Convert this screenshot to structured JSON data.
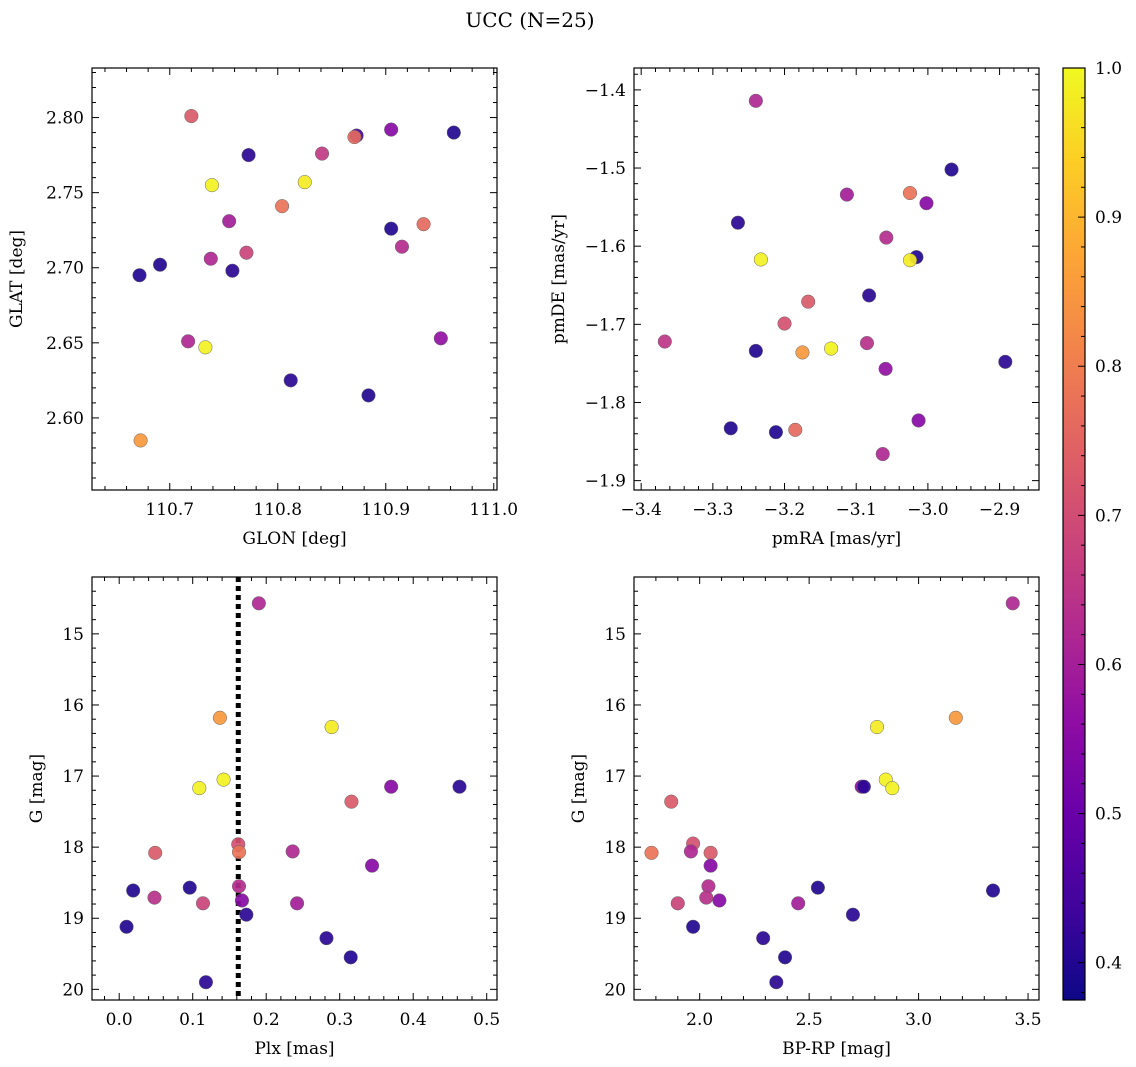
{
  "title": "UCC (N=25)",
  "colorbar": {
    "range": [
      0.375,
      1.0
    ],
    "ticks": [
      0.4,
      0.5,
      0.6,
      0.7,
      0.8,
      0.9,
      1.0
    ],
    "tick_labels": [
      "0.4",
      "0.5",
      "0.6",
      "0.7",
      "0.8",
      "0.9",
      "1.0"
    ],
    "colormap": "plasma"
  },
  "chart_data": [
    {
      "type": "scatter",
      "id": "glon_glat",
      "xlabel": "GLON [deg]",
      "ylabel": "GLAT [deg]",
      "xlim": [
        110.628,
        111.003
      ],
      "ylim": [
        2.552,
        2.833
      ],
      "inverted_y": false,
      "xticks": [
        110.7,
        110.8,
        110.9,
        111.0
      ],
      "xtick_labels": [
        "110.7",
        "110.8",
        "110.9",
        "111.0"
      ],
      "yticks": [
        2.6,
        2.65,
        2.7,
        2.75,
        2.8
      ],
      "ytick_labels": [
        "2.60",
        "2.65",
        "2.70",
        "2.75",
        "2.80"
      ],
      "points": [
        {
          "x": 110.72,
          "y": 2.801,
          "c": 0.73
        },
        {
          "x": 110.873,
          "y": 2.788,
          "c": 0.44
        },
        {
          "x": 110.871,
          "y": 2.787,
          "c": 0.76
        },
        {
          "x": 110.905,
          "y": 2.792,
          "c": 0.55
        },
        {
          "x": 110.963,
          "y": 2.79,
          "c": 0.4
        },
        {
          "x": 110.841,
          "y": 2.776,
          "c": 0.66
        },
        {
          "x": 110.773,
          "y": 2.775,
          "c": 0.41
        },
        {
          "x": 110.825,
          "y": 2.757,
          "c": 0.98
        },
        {
          "x": 110.739,
          "y": 2.755,
          "c": 0.99
        },
        {
          "x": 110.804,
          "y": 2.741,
          "c": 0.78
        },
        {
          "x": 110.755,
          "y": 2.731,
          "c": 0.6
        },
        {
          "x": 110.935,
          "y": 2.729,
          "c": 0.76
        },
        {
          "x": 110.905,
          "y": 2.726,
          "c": 0.4
        },
        {
          "x": 110.915,
          "y": 2.714,
          "c": 0.63
        },
        {
          "x": 110.771,
          "y": 2.71,
          "c": 0.68
        },
        {
          "x": 110.738,
          "y": 2.706,
          "c": 0.62
        },
        {
          "x": 110.691,
          "y": 2.702,
          "c": 0.4
        },
        {
          "x": 110.758,
          "y": 2.698,
          "c": 0.41
        },
        {
          "x": 110.672,
          "y": 2.695,
          "c": 0.4
        },
        {
          "x": 110.717,
          "y": 2.651,
          "c": 0.62
        },
        {
          "x": 110.733,
          "y": 2.647,
          "c": 0.99
        },
        {
          "x": 110.951,
          "y": 2.653,
          "c": 0.57
        },
        {
          "x": 110.812,
          "y": 2.625,
          "c": 0.41
        },
        {
          "x": 110.884,
          "y": 2.615,
          "c": 0.4
        },
        {
          "x": 110.673,
          "y": 2.585,
          "c": 0.85
        }
      ]
    },
    {
      "type": "scatter",
      "id": "pmra_pmde",
      "xlabel": "pmRA [mas/yr]",
      "ylabel": "pmDE [mas/yr]",
      "xlim": [
        -3.41,
        -2.845
      ],
      "ylim": [
        -1.912,
        -1.372
      ],
      "inverted_y": false,
      "xticks": [
        -3.4,
        -3.3,
        -3.2,
        -3.1,
        -3.0,
        -2.9
      ],
      "xtick_labels": [
        "−3.4",
        "−3.3",
        "−3.2",
        "−3.1",
        "−3.0",
        "−2.9"
      ],
      "yticks": [
        -1.9,
        -1.8,
        -1.7,
        -1.6,
        -1.5,
        -1.4
      ],
      "ytick_labels": [
        "−1.9",
        "−1.8",
        "−1.7",
        "−1.6",
        "−1.5",
        "−1.4"
      ],
      "points": [
        {
          "x": -3.24,
          "y": -1.414,
          "c": 0.62
        },
        {
          "x": -2.967,
          "y": -1.502,
          "c": 0.4
        },
        {
          "x": -3.113,
          "y": -1.534,
          "c": 0.6
        },
        {
          "x": -3.025,
          "y": -1.532,
          "c": 0.78
        },
        {
          "x": -3.002,
          "y": -1.545,
          "c": 0.55
        },
        {
          "x": -3.265,
          "y": -1.57,
          "c": 0.41
        },
        {
          "x": -3.058,
          "y": -1.589,
          "c": 0.63
        },
        {
          "x": -3.016,
          "y": -1.614,
          "c": 0.4
        },
        {
          "x": -3.025,
          "y": -1.618,
          "c": 0.98
        },
        {
          "x": -3.233,
          "y": -1.617,
          "c": 0.99
        },
        {
          "x": -3.082,
          "y": -1.663,
          "c": 0.41
        },
        {
          "x": -3.167,
          "y": -1.671,
          "c": 0.73
        },
        {
          "x": -3.2,
          "y": -1.699,
          "c": 0.71
        },
        {
          "x": -3.367,
          "y": -1.722,
          "c": 0.65
        },
        {
          "x": -3.085,
          "y": -1.724,
          "c": 0.64
        },
        {
          "x": -3.135,
          "y": -1.731,
          "c": 0.99
        },
        {
          "x": -3.175,
          "y": -1.736,
          "c": 0.85
        },
        {
          "x": -3.24,
          "y": -1.734,
          "c": 0.4
        },
        {
          "x": -2.892,
          "y": -1.748,
          "c": 0.41
        },
        {
          "x": -3.059,
          "y": -1.757,
          "c": 0.57
        },
        {
          "x": -3.013,
          "y": -1.823,
          "c": 0.55
        },
        {
          "x": -3.275,
          "y": -1.833,
          "c": 0.4
        },
        {
          "x": -3.212,
          "y": -1.838,
          "c": 0.4
        },
        {
          "x": -3.185,
          "y": -1.835,
          "c": 0.76
        },
        {
          "x": -3.063,
          "y": -1.866,
          "c": 0.62
        }
      ]
    },
    {
      "type": "scatter",
      "id": "plx_g",
      "xlabel": "Plx [mas]",
      "ylabel": "G [mag]",
      "xlim": [
        -0.037,
        0.514
      ],
      "ylim": [
        14.2,
        20.15
      ],
      "inverted_y": true,
      "vline": {
        "x": 0.162,
        "style": "dotted",
        "color": "#000000"
      },
      "xticks": [
        0.0,
        0.1,
        0.2,
        0.3,
        0.4,
        0.5
      ],
      "xtick_labels": [
        "0.0",
        "0.1",
        "0.2",
        "0.3",
        "0.4",
        "0.5"
      ],
      "yticks": [
        15,
        16,
        17,
        18,
        19,
        20
      ],
      "ytick_labels": [
        "15",
        "16",
        "17",
        "18",
        "19",
        "20"
      ],
      "points": [
        {
          "x": 0.19,
          "y": 14.57,
          "c": 0.62
        },
        {
          "x": 0.137,
          "y": 16.18,
          "c": 0.85
        },
        {
          "x": 0.289,
          "y": 16.31,
          "c": 0.98
        },
        {
          "x": 0.142,
          "y": 17.05,
          "c": 0.99
        },
        {
          "x": 0.109,
          "y": 17.17,
          "c": 0.99
        },
        {
          "x": 0.37,
          "y": 17.15,
          "c": 0.55
        },
        {
          "x": 0.463,
          "y": 17.15,
          "c": 0.41
        },
        {
          "x": 0.316,
          "y": 17.36,
          "c": 0.73
        },
        {
          "x": 0.162,
          "y": 17.96,
          "c": 0.71
        },
        {
          "x": 0.163,
          "y": 18.07,
          "c": 0.78
        },
        {
          "x": 0.049,
          "y": 18.08,
          "c": 0.73
        },
        {
          "x": 0.236,
          "y": 18.06,
          "c": 0.62
        },
        {
          "x": 0.344,
          "y": 18.26,
          "c": 0.55
        },
        {
          "x": 0.163,
          "y": 18.55,
          "c": 0.63
        },
        {
          "x": 0.096,
          "y": 18.57,
          "c": 0.4
        },
        {
          "x": 0.019,
          "y": 18.61,
          "c": 0.4
        },
        {
          "x": 0.048,
          "y": 18.71,
          "c": 0.64
        },
        {
          "x": 0.167,
          "y": 18.75,
          "c": 0.55
        },
        {
          "x": 0.114,
          "y": 18.79,
          "c": 0.68
        },
        {
          "x": 0.242,
          "y": 18.79,
          "c": 0.6
        },
        {
          "x": 0.173,
          "y": 18.95,
          "c": 0.41
        },
        {
          "x": 0.01,
          "y": 19.12,
          "c": 0.4
        },
        {
          "x": 0.282,
          "y": 19.28,
          "c": 0.41
        },
        {
          "x": 0.315,
          "y": 19.55,
          "c": 0.4
        },
        {
          "x": 0.118,
          "y": 19.9,
          "c": 0.41
        }
      ]
    },
    {
      "type": "scatter",
      "id": "bprp_g",
      "xlabel": "BP-RP [mag]",
      "ylabel": "G [mag]",
      "xlim": [
        1.7,
        3.55
      ],
      "ylim": [
        14.2,
        20.15
      ],
      "inverted_y": true,
      "xticks": [
        2.0,
        2.5,
        3.0,
        3.5
      ],
      "xtick_labels": [
        "2.0",
        "2.5",
        "3.0",
        "3.5"
      ],
      "yticks": [
        15,
        16,
        17,
        18,
        19,
        20
      ],
      "ytick_labels": [
        "15",
        "16",
        "17",
        "18",
        "19",
        "20"
      ],
      "points": [
        {
          "x": 3.43,
          "y": 14.57,
          "c": 0.62
        },
        {
          "x": 3.17,
          "y": 16.18,
          "c": 0.85
        },
        {
          "x": 2.81,
          "y": 16.31,
          "c": 0.98
        },
        {
          "x": 2.85,
          "y": 17.05,
          "c": 0.99
        },
        {
          "x": 2.88,
          "y": 17.17,
          "c": 0.99
        },
        {
          "x": 2.74,
          "y": 17.15,
          "c": 0.55
        },
        {
          "x": 2.75,
          "y": 17.15,
          "c": 0.41
        },
        {
          "x": 1.87,
          "y": 17.36,
          "c": 0.73
        },
        {
          "x": 1.97,
          "y": 17.95,
          "c": 0.71
        },
        {
          "x": 1.78,
          "y": 18.08,
          "c": 0.78
        },
        {
          "x": 2.05,
          "y": 18.08,
          "c": 0.73
        },
        {
          "x": 1.96,
          "y": 18.06,
          "c": 0.62
        },
        {
          "x": 2.05,
          "y": 18.26,
          "c": 0.55
        },
        {
          "x": 2.04,
          "y": 18.55,
          "c": 0.63
        },
        {
          "x": 2.54,
          "y": 18.57,
          "c": 0.4
        },
        {
          "x": 3.34,
          "y": 18.61,
          "c": 0.4
        },
        {
          "x": 2.03,
          "y": 18.71,
          "c": 0.64
        },
        {
          "x": 2.09,
          "y": 18.75,
          "c": 0.55
        },
        {
          "x": 1.9,
          "y": 18.79,
          "c": 0.68
        },
        {
          "x": 2.45,
          "y": 18.79,
          "c": 0.6
        },
        {
          "x": 2.7,
          "y": 18.95,
          "c": 0.41
        },
        {
          "x": 1.97,
          "y": 19.12,
          "c": 0.4
        },
        {
          "x": 2.29,
          "y": 19.28,
          "c": 0.41
        },
        {
          "x": 2.39,
          "y": 19.55,
          "c": 0.4
        },
        {
          "x": 2.35,
          "y": 19.9,
          "c": 0.41
        }
      ]
    }
  ]
}
